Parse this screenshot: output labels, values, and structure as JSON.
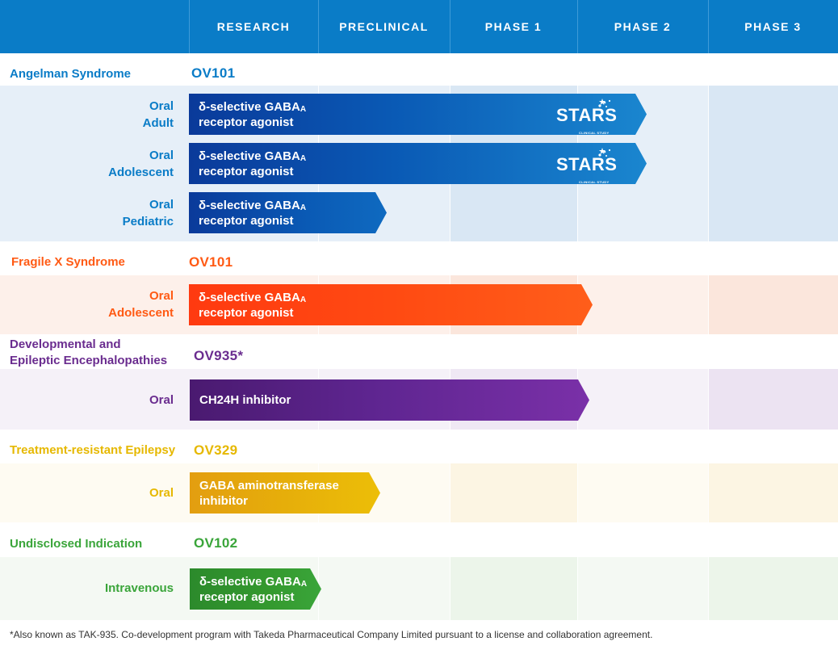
{
  "header": {
    "columns": [
      "RESEARCH",
      "PRECLINICAL",
      "PHASE 1",
      "PHASE 2",
      "PHASE 3"
    ]
  },
  "colors": {
    "header_bg": "#0a7cc7",
    "angelman": "#0a7cc7",
    "fragile_x": "#ff5a14",
    "dee": "#6a2c8f",
    "epilepsy": "#e6b800",
    "undisclosed": "#3aa53a"
  },
  "groups": {
    "angelman": {
      "title": "Angelman Syndrome",
      "code": "OV101",
      "rows": [
        {
          "label_1": "Oral",
          "label_2": "Adult",
          "drug_1": "δ-selective GABA",
          "drug_sub": "A",
          "drug_2": "receptor agonist",
          "logo": "STARS",
          "logo_sub": "CLINICAL STUDY"
        },
        {
          "label_1": "Oral",
          "label_2": "Adolescent",
          "drug_1": "δ-selective GABA",
          "drug_sub": "A",
          "drug_2": "receptor agonist",
          "logo": "STARS",
          "logo_sub": "CLINICAL STUDY"
        },
        {
          "label_1": "Oral",
          "label_2": "Pediatric",
          "drug_1": "δ-selective GABA",
          "drug_sub": "A",
          "drug_2": "receptor agonist"
        }
      ]
    },
    "fragile_x": {
      "title": "Fragile X Syndrome",
      "code": "OV101",
      "rows": [
        {
          "label_1": "Oral",
          "label_2": "Adolescent",
          "drug_1": "δ-selective GABA",
          "drug_sub": "A",
          "drug_2": "receptor agonist"
        }
      ]
    },
    "dee": {
      "title_1": "Developmental and",
      "title_2": "Epileptic Encephalopathies",
      "code": "OV935*",
      "rows": [
        {
          "label_1": "Oral",
          "drug_1": "CH24H inhibitor"
        }
      ]
    },
    "epilepsy": {
      "title": "Treatment-resistant Epilepsy",
      "code": "OV329",
      "rows": [
        {
          "label_1": "Oral",
          "drug_1": "GABA aminotransferase",
          "drug_2": "inhibitor"
        }
      ]
    },
    "undisclosed": {
      "title": "Undisclosed Indication",
      "code": "OV102",
      "rows": [
        {
          "label_1": "Intravenous",
          "drug_1": "δ-selective GABA",
          "drug_sub": "A",
          "drug_2": "receptor agonist"
        }
      ]
    }
  },
  "footnote": "*Also known as TAK-935. Co-development program with Takeda Pharmaceutical Company Limited pursuant to a license and collaboration agreement."
}
